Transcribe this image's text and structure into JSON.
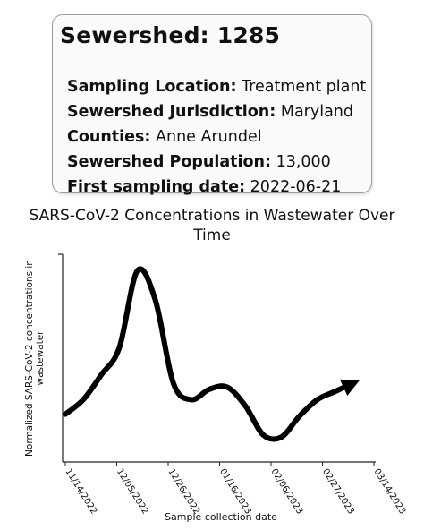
{
  "card": {
    "title": "Sewershed: 1285",
    "rows": [
      {
        "label": "Sampling Location:",
        "value": "Treatment plant"
      },
      {
        "label": "Sewershed Jurisdiction:",
        "value": "Maryland"
      },
      {
        "label": "Counties:",
        "value": "Anne Arundel"
      },
      {
        "label": "Sewershed Population:",
        "value": "13,000"
      },
      {
        "label": "First sampling date:",
        "value": "2022-06-21"
      }
    ]
  },
  "chart_data": {
    "type": "line",
    "title": "SARS-CoV-2 Concentrations in Wastewater Over Time",
    "title_lines": [
      "SARS-CoV-2 Concentrations in Wastewater Over",
      "Time"
    ],
    "xlabel": "Sample collection date",
    "ylabel": "Normalized SARS-CoV-2 concentrations in wastewater",
    "ylabel_lines": [
      "Normalized SARS-CoV-2 concentrations in",
      "wastewater"
    ],
    "xticks": [
      "11/14/2022",
      "12/05/2022",
      "12/26/2022",
      "01/16/2023",
      "02/06/2023",
      "02/27/2023",
      "03/14/2023"
    ],
    "yticks": [],
    "ylim": [
      0,
      1
    ],
    "grid": false,
    "series": [
      {
        "x": [
          "2022-11-14",
          "2022-11-21",
          "2022-11-28",
          "2022-12-05",
          "2022-12-12",
          "2022-12-19",
          "2022-12-26",
          "2023-01-02",
          "2023-01-09",
          "2023-01-16",
          "2023-01-23",
          "2023-01-30",
          "2023-02-06",
          "2023-02-13",
          "2023-02-20",
          "2023-02-27",
          "2023-03-06"
        ],
        "values": [
          0.23,
          0.3,
          0.42,
          0.55,
          0.92,
          0.78,
          0.38,
          0.3,
          0.35,
          0.36,
          0.27,
          0.13,
          0.12,
          0.22,
          0.3,
          0.34,
          0.38
        ],
        "color": "#000000",
        "end_arrow": true
      }
    ]
  }
}
